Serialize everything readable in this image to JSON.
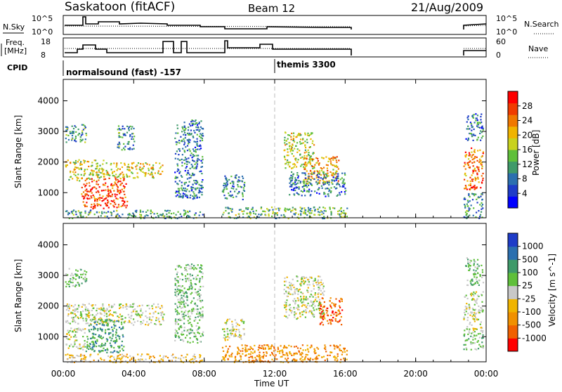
{
  "header": {
    "station": "Saskatoon (fitACF)",
    "beam": "Beam 12",
    "date": "21/Aug/2009"
  },
  "status_panels": {
    "nsky_label": "N.Sky",
    "nsky_ticks": [
      "10^5",
      "10^0"
    ],
    "nsearch_label": "N.Search",
    "nsearch_ticks": [
      "10^5",
      "10^0"
    ],
    "freq_label_line1": "Freq.",
    "freq_label_line2": "[MHz]",
    "freq_ticks": [
      "18",
      "8"
    ],
    "nave_label": "Nave",
    "nave_ticks": [
      "60",
      "0"
    ],
    "cpid_label": "CPID",
    "cpid_modes": [
      {
        "label": "normalsound (fast) -157",
        "start_hour": 0
      },
      {
        "label": "themis 3300",
        "start_hour": 12
      }
    ]
  },
  "chart_data": [
    {
      "type": "heatmap",
      "title": "",
      "ylabel": "Slant Range [km]",
      "xlabel": "",
      "ylim": [
        180,
        4700
      ],
      "yticks": [
        1000,
        2000,
        3000,
        4000
      ],
      "xlim": [
        0,
        24
      ],
      "colorbar": {
        "label": "Power [dB]",
        "ticks": [
          "4",
          "8",
          "12",
          "16",
          "20",
          "24",
          "28"
        ],
        "colors": [
          "#0000ff",
          "#1e3cc8",
          "#2b6faf",
          "#3f9a6a",
          "#5fbf3a",
          "#c8d21e",
          "#f0b400",
          "#f07800",
          "#f03c00",
          "#ff0000"
        ]
      },
      "patches": [
        {
          "t0": 0.1,
          "t1": 2.3,
          "r0": 1400,
          "r1": 2100,
          "intensity": 0.55
        },
        {
          "t0": 0.1,
          "t1": 1.3,
          "r0": 2650,
          "r1": 3250,
          "intensity": 0.35
        },
        {
          "t0": 1.0,
          "t1": 3.6,
          "r0": 500,
          "r1": 1500,
          "intensity": 0.9
        },
        {
          "t0": 2.4,
          "t1": 5.6,
          "r0": 1500,
          "r1": 2000,
          "intensity": 0.6
        },
        {
          "t0": 3.0,
          "t1": 4.0,
          "r0": 2400,
          "r1": 3200,
          "intensity": 0.3
        },
        {
          "t0": 0.1,
          "t1": 7.9,
          "r0": 180,
          "r1": 450,
          "intensity": 0.35
        },
        {
          "t0": 6.3,
          "t1": 7.9,
          "r0": 800,
          "r1": 3400,
          "intensity": 0.25
        },
        {
          "t0": 9.0,
          "t1": 10.3,
          "r0": 800,
          "r1": 1600,
          "intensity": 0.25
        },
        {
          "t0": 9.0,
          "t1": 16.1,
          "r0": 180,
          "r1": 550,
          "intensity": 0.4
        },
        {
          "t0": 12.5,
          "t1": 14.2,
          "r0": 1800,
          "r1": 3000,
          "intensity": 0.55
        },
        {
          "t0": 13.6,
          "t1": 15.6,
          "r0": 1300,
          "r1": 2200,
          "intensity": 0.7
        },
        {
          "t0": 12.8,
          "t1": 16.0,
          "r0": 900,
          "r1": 1700,
          "intensity": 0.25
        },
        {
          "t0": 22.7,
          "t1": 23.8,
          "r0": 1100,
          "r1": 2500,
          "intensity": 0.8
        },
        {
          "t0": 22.7,
          "t1": 23.8,
          "r0": 180,
          "r1": 1000,
          "intensity": 0.3
        },
        {
          "t0": 22.8,
          "t1": 23.8,
          "r0": 2700,
          "r1": 3600,
          "intensity": 0.25
        }
      ]
    },
    {
      "type": "heatmap",
      "title": "",
      "ylabel": "Slant Range [km]",
      "xlabel": "Time UT",
      "ylim": [
        180,
        4700
      ],
      "yticks": [
        1000,
        2000,
        3000,
        4000
      ],
      "xlim": [
        0,
        24
      ],
      "xticks": [
        "00:00",
        "04:00",
        "08:00",
        "12:00",
        "16:00",
        "20:00",
        "00:00"
      ],
      "colorbar": {
        "label": "Velocity [m s^-1]",
        "ticks": [
          "1000",
          "500",
          "100",
          "25",
          "-25",
          "-100",
          "-500",
          "-1000"
        ],
        "colors": [
          "#1e3cc8",
          "#2b6faf",
          "#3f9a6a",
          "#5fbf3a",
          "#c8c8c8",
          "#f0b400",
          "#f09000",
          "#f06000",
          "#ff0000"
        ]
      },
      "patches": [
        {
          "t0": 0.1,
          "t1": 5.7,
          "r0": 1400,
          "r1": 2100,
          "velocity_class": 4
        },
        {
          "t0": 1.2,
          "t1": 3.4,
          "r0": 500,
          "r1": 1600,
          "velocity_class": 2
        },
        {
          "t0": 0.1,
          "t1": 1.2,
          "r0": 600,
          "r1": 1300,
          "velocity_class": 4
        },
        {
          "t0": 0.1,
          "t1": 1.3,
          "r0": 2650,
          "r1": 3250,
          "velocity_class": 3
        },
        {
          "t0": 0.1,
          "t1": 7.9,
          "r0": 180,
          "r1": 450,
          "velocity_class": 5
        },
        {
          "t0": 6.3,
          "t1": 7.9,
          "r0": 800,
          "r1": 3400,
          "velocity_class": 3
        },
        {
          "t0": 9.0,
          "t1": 10.3,
          "r0": 900,
          "r1": 1600,
          "velocity_class": 4
        },
        {
          "t0": 9.0,
          "t1": 16.1,
          "r0": 180,
          "r1": 750,
          "velocity_class": 6
        },
        {
          "t0": 12.5,
          "t1": 14.8,
          "r0": 1600,
          "r1": 3000,
          "velocity_class": 4
        },
        {
          "t0": 14.5,
          "t1": 15.8,
          "r0": 1400,
          "r1": 2300,
          "velocity_class": 7
        },
        {
          "t0": 22.7,
          "t1": 23.8,
          "r0": 1100,
          "r1": 2500,
          "velocity_class": 4
        },
        {
          "t0": 22.7,
          "t1": 23.8,
          "r0": 600,
          "r1": 1100,
          "velocity_class": 3
        },
        {
          "t0": 22.8,
          "t1": 23.8,
          "r0": 2700,
          "r1": 3600,
          "velocity_class": 3
        }
      ]
    }
  ]
}
